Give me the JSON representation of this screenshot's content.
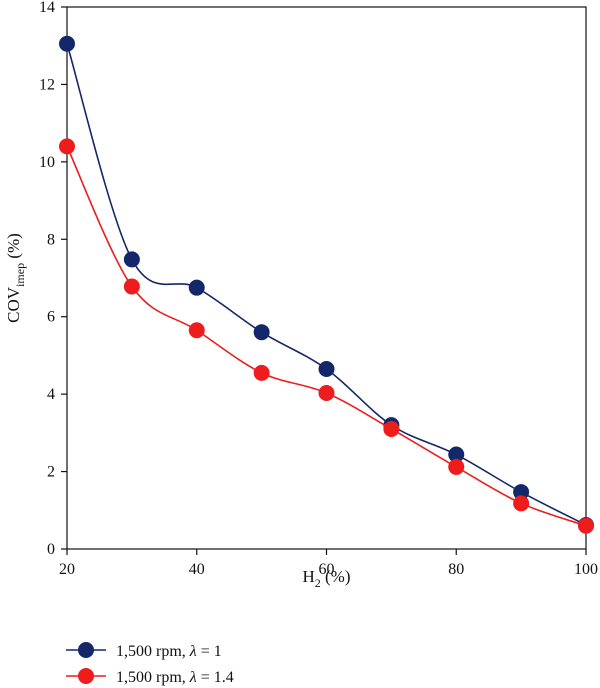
{
  "chart_data": {
    "type": "line",
    "title": "",
    "xlabel": {
      "main": "H",
      "sub": "2",
      "suffix": " (%)"
    },
    "ylabel": {
      "main": "COV",
      "sub": "imep",
      "suffix": " (%)"
    },
    "xlim": [
      20,
      100
    ],
    "ylim": [
      0,
      14
    ],
    "xticks": [
      20,
      40,
      60,
      80,
      100
    ],
    "yticks": [
      0,
      2,
      4,
      6,
      8,
      10,
      12,
      14
    ],
    "grid": false,
    "legend_position": "bottom-left",
    "x": [
      20,
      30,
      40,
      50,
      60,
      70,
      80,
      90,
      100
    ],
    "series": [
      {
        "name": "1,500 rpm, λ = 1",
        "legend": {
          "prefix": "1,500 rpm, ",
          "symbol": "λ",
          "suffix": " = 1"
        },
        "color": "#13276a",
        "values": [
          13.05,
          7.48,
          6.75,
          5.6,
          4.65,
          3.2,
          2.44,
          1.47,
          0.62
        ]
      },
      {
        "name": "1,500 rpm, λ = 1.4",
        "legend": {
          "prefix": "1,500 rpm, ",
          "symbol": "λ",
          "suffix": " = 1.4"
        },
        "color": "#ee1c1c",
        "values": [
          10.4,
          6.78,
          5.65,
          4.55,
          4.03,
          3.1,
          2.12,
          1.18,
          0.6
        ]
      }
    ]
  }
}
